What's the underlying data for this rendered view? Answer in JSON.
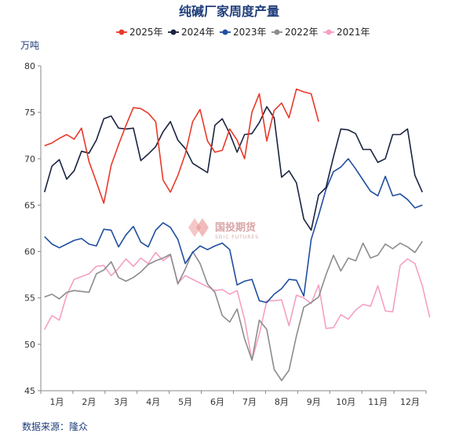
{
  "chart_data": {
    "type": "line",
    "title": "纯碱厂家周度产量",
    "ylabel": "万吨",
    "ylim": [
      45,
      80
    ],
    "yticks": [
      45,
      50,
      55,
      60,
      65,
      70,
      75,
      80
    ],
    "xlim": [
      0,
      52
    ],
    "xtick_labels": [
      "1月",
      "2月",
      "3月",
      "4月",
      "5月",
      "6月",
      "7月",
      "8月",
      "9月",
      "10月",
      "11月",
      "12月"
    ],
    "legend_position": "top",
    "grid": false,
    "series": [
      {
        "name": "2025年",
        "color": "#e8392a",
        "values": [
          71.4,
          71.7,
          72.2,
          72.6,
          72.1,
          73.3,
          69.7,
          67.5,
          65.2,
          69.3,
          71.5,
          73.6,
          75.5,
          75.4,
          74.9,
          74.0,
          67.7,
          66.4,
          68.2,
          70.5,
          74.0,
          75.3,
          71.9,
          70.7,
          70.9,
          73.2,
          72.0,
          70.0,
          75.0,
          77.0,
          71.9,
          75.2,
          76.0,
          74.4,
          77.5,
          77.2,
          77.0,
          74.0
        ]
      },
      {
        "name": "2024年",
        "color": "#1a2340",
        "values": [
          66.4,
          69.2,
          69.9,
          67.8,
          68.7,
          70.8,
          70.6,
          72.0,
          74.3,
          74.6,
          73.3,
          73.2,
          73.3,
          69.8,
          70.5,
          71.3,
          72.9,
          74.0,
          72.0,
          71.1,
          69.5,
          69.0,
          68.5,
          73.6,
          74.3,
          72.7,
          70.7,
          72.6,
          72.7,
          73.9,
          75.6,
          74.4,
          68.0,
          68.7,
          67.4,
          63.5,
          62.3,
          66.1,
          66.9,
          70.2,
          73.2,
          73.1,
          72.7,
          71.0,
          71.0,
          69.6,
          70.0,
          72.6,
          72.6,
          73.2,
          68.2,
          66.4
        ]
      },
      {
        "name": "2023年",
        "color": "#1f4ea0",
        "values": [
          61.6,
          60.8,
          60.4,
          60.8,
          61.2,
          61.4,
          60.8,
          60.6,
          62.4,
          62.3,
          60.5,
          61.8,
          62.7,
          61.0,
          60.5,
          62.3,
          63.1,
          62.6,
          61.3,
          58.7,
          59.9,
          60.6,
          60.2,
          60.6,
          60.9,
          60.2,
          56.4,
          56.8,
          57.0,
          54.7,
          54.5,
          55.4,
          56.0,
          57.0,
          56.9,
          55.2,
          61.3,
          63.9,
          66.7,
          68.6,
          69.1,
          70.0,
          68.9,
          67.7,
          66.5,
          66.0,
          68.1,
          66.0,
          66.2,
          65.6,
          64.7,
          65.0
        ]
      },
      {
        "name": "2022年",
        "color": "#8c8c8c",
        "values": [
          55.1,
          55.4,
          54.9,
          55.6,
          55.8,
          55.7,
          55.6,
          57.6,
          58.0,
          58.9,
          57.2,
          56.8,
          57.2,
          57.8,
          58.6,
          59.0,
          59.3,
          59.7,
          56.5,
          58.1,
          60.0,
          58.7,
          56.5,
          55.6,
          53.1,
          52.4,
          53.8,
          50.6,
          48.3,
          52.6,
          51.6,
          47.3,
          46.1,
          47.2,
          50.9,
          54.0,
          54.5,
          55.1,
          57.5,
          59.6,
          57.9,
          59.3,
          59.0,
          60.9,
          59.3,
          59.6,
          60.8,
          60.3,
          60.9,
          60.5,
          59.9,
          61.1
        ]
      },
      {
        "name": "2021年",
        "color": "#f4a0c4",
        "values": [
          51.6,
          53.1,
          52.6,
          55.3,
          57.0,
          57.3,
          57.6,
          58.4,
          58.5,
          57.4,
          58.2,
          59.2,
          58.4,
          59.3,
          58.7,
          59.9,
          59.0,
          59.6,
          56.6,
          57.4,
          57.0,
          56.6,
          56.2,
          55.8,
          55.9,
          55.4,
          55.8,
          52.7,
          48.3,
          51.1,
          54.7,
          54.7,
          54.8,
          52.0,
          55.3,
          55.0,
          54.4,
          56.4,
          51.7,
          51.8,
          53.2,
          52.7,
          53.7,
          54.3,
          54.1,
          56.3,
          53.6,
          53.5,
          58.5,
          59.2,
          58.7,
          56.3,
          52.9
        ]
      }
    ]
  },
  "source": "数据来源：隆众",
  "watermark": {
    "name": "国投期货",
    "sub": "SDIC FUTURES"
  }
}
